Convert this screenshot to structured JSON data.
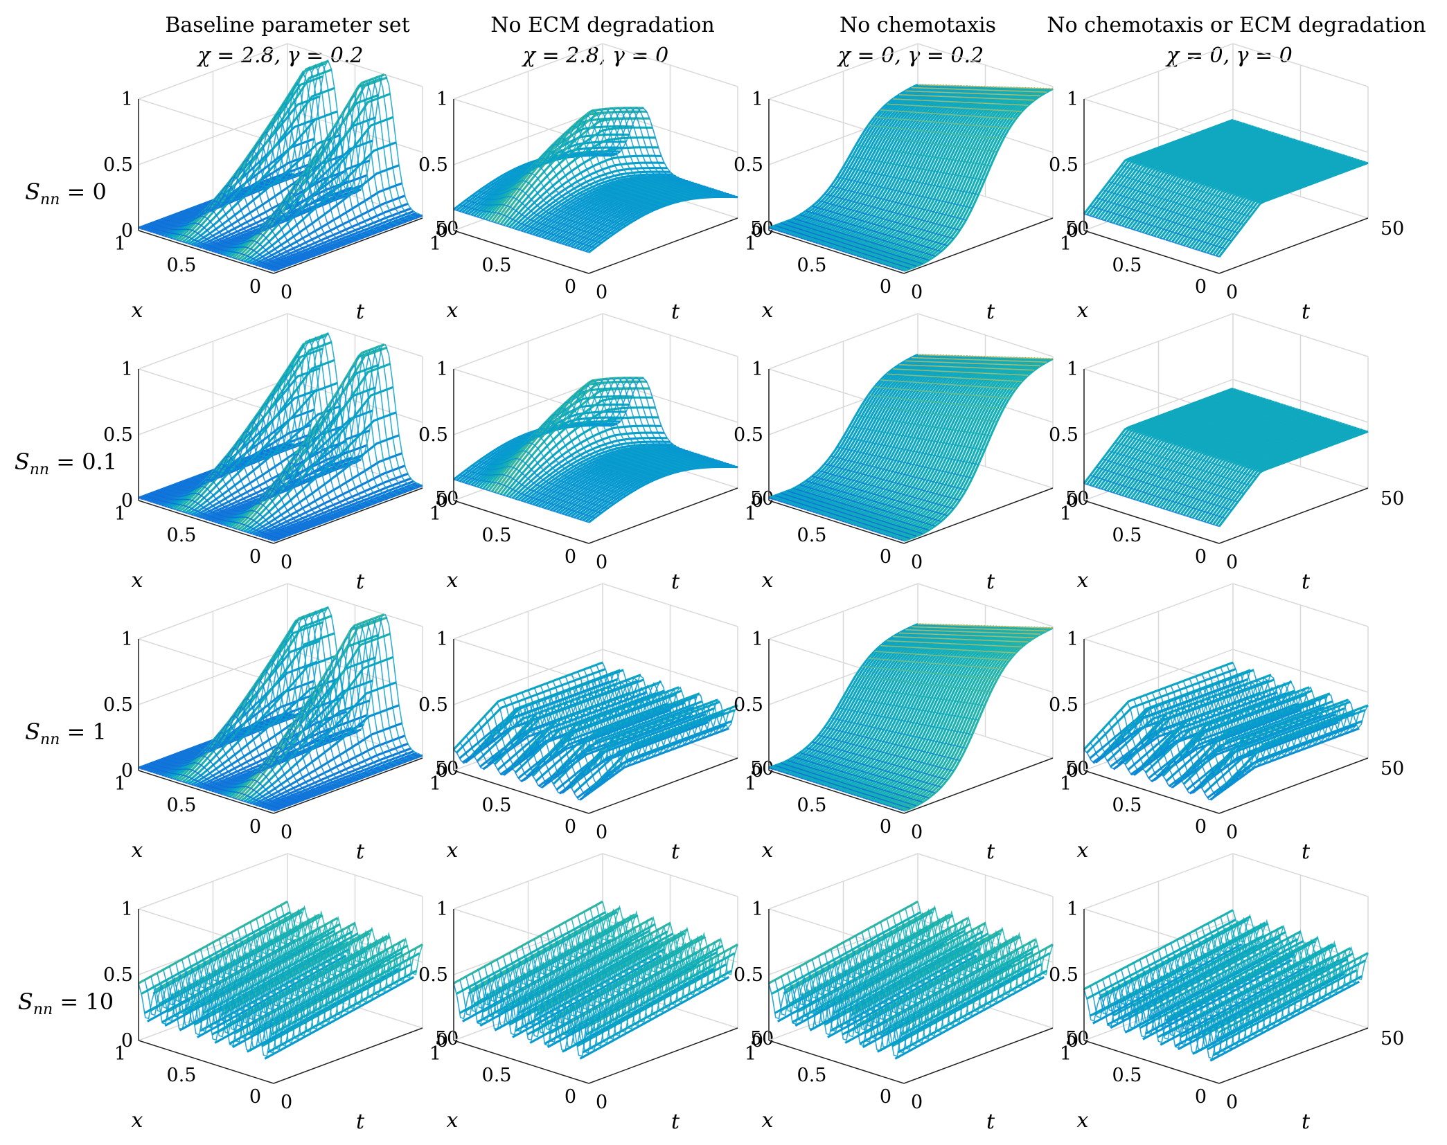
{
  "chart_data": {
    "type": "surface3d-grid",
    "description_axes": {
      "x_label": "x",
      "t_label": "t"
    },
    "columns": [
      {
        "title": "Baseline parameter set",
        "params": "χ = 2.8, γ = 0.2",
        "chi": 2.8,
        "gamma": 0.2
      },
      {
        "title": "No ECM degradation",
        "params": "χ = 2.8, γ = 0",
        "chi": 2.8,
        "gamma": 0
      },
      {
        "title": "No chemotaxis",
        "params": "χ = 0, γ = 0.2",
        "chi": 0,
        "gamma": 0.2
      },
      {
        "title": "No chemotaxis or ECM degradation",
        "params": "χ = 0, γ = 0",
        "chi": 0,
        "gamma": 0
      }
    ],
    "rows": [
      {
        "label": "Snn = 0",
        "label_main": "S",
        "label_sub": "nn",
        "label_rest": " = 0",
        "Snn": 0
      },
      {
        "label": "Snn = 0.1",
        "label_main": "S",
        "label_sub": "nn",
        "label_rest": " = 0.1",
        "Snn": 0.1
      },
      {
        "label": "Snn = 1",
        "label_main": "S",
        "label_sub": "nn",
        "label_rest": " = 1",
        "Snn": 1
      },
      {
        "label": "Snn = 10",
        "label_main": "S",
        "label_sub": "nn",
        "label_rest": " = 10",
        "Snn": 10
      }
    ],
    "axes": {
      "z_ticks": [
        "0",
        "0.5",
        "1"
      ],
      "x_ticks": [
        "1",
        "0.5",
        "0"
      ],
      "t_ticks": [
        "0",
        "50"
      ],
      "xlim": [
        0,
        1
      ],
      "tlim": [
        0,
        50
      ],
      "zlim": [
        0,
        1
      ],
      "xlabel": "x",
      "tlabel": "t"
    },
    "panels": [
      [
        {
          "kind": "ridges",
          "peaks": [
            {
              "x": 0.72,
              "amp": 1.0
            },
            {
              "x": 0.3,
              "amp": 0.95
            }
          ],
          "width": 0.1,
          "rise": 0.85,
          "tail": 1.0
        },
        {
          "kind": "plateau",
          "level": 0.35,
          "bump_x": 0.3,
          "bump_amp": 0.45,
          "width": 0.12
        },
        {
          "kind": "sigmoid",
          "level": 1.0,
          "t_mid": 0.55
        },
        {
          "kind": "flat",
          "level": 0.42
        }
      ],
      [
        {
          "kind": "ridges",
          "peaks": [
            {
              "x": 0.72,
              "amp": 1.0
            },
            {
              "x": 0.3,
              "amp": 0.93
            }
          ],
          "width": 0.1,
          "rise": 0.85,
          "tail": 1.0
        },
        {
          "kind": "plateau",
          "level": 0.35,
          "bump_x": 0.3,
          "bump_amp": 0.45,
          "width": 0.12
        },
        {
          "kind": "sigmoid",
          "level": 1.0,
          "t_mid": 0.55
        },
        {
          "kind": "flat",
          "level": 0.43
        }
      ],
      [
        {
          "kind": "ridges",
          "peaks": [
            {
              "x": 0.72,
              "amp": 1.0
            },
            {
              "x": 0.3,
              "amp": 0.9
            }
          ],
          "width": 0.1,
          "rise": 0.8,
          "tail": 1.0
        },
        {
          "kind": "stripes",
          "level": 0.4,
          "count": 7
        },
        {
          "kind": "sigmoid",
          "level": 1.0,
          "t_mid": 0.5
        },
        {
          "kind": "stripes",
          "level": 0.4,
          "count": 7
        }
      ],
      [
        {
          "kind": "spikes",
          "level": 0.5,
          "count": 8,
          "amp": 0.45
        },
        {
          "kind": "spikes",
          "level": 0.5,
          "count": 8,
          "amp": 0.45
        },
        {
          "kind": "spikes",
          "level": 0.5,
          "count": 8,
          "amp": 0.45
        },
        {
          "kind": "spikes",
          "level": 0.45,
          "count": 8,
          "amp": 0.4
        }
      ]
    ]
  }
}
